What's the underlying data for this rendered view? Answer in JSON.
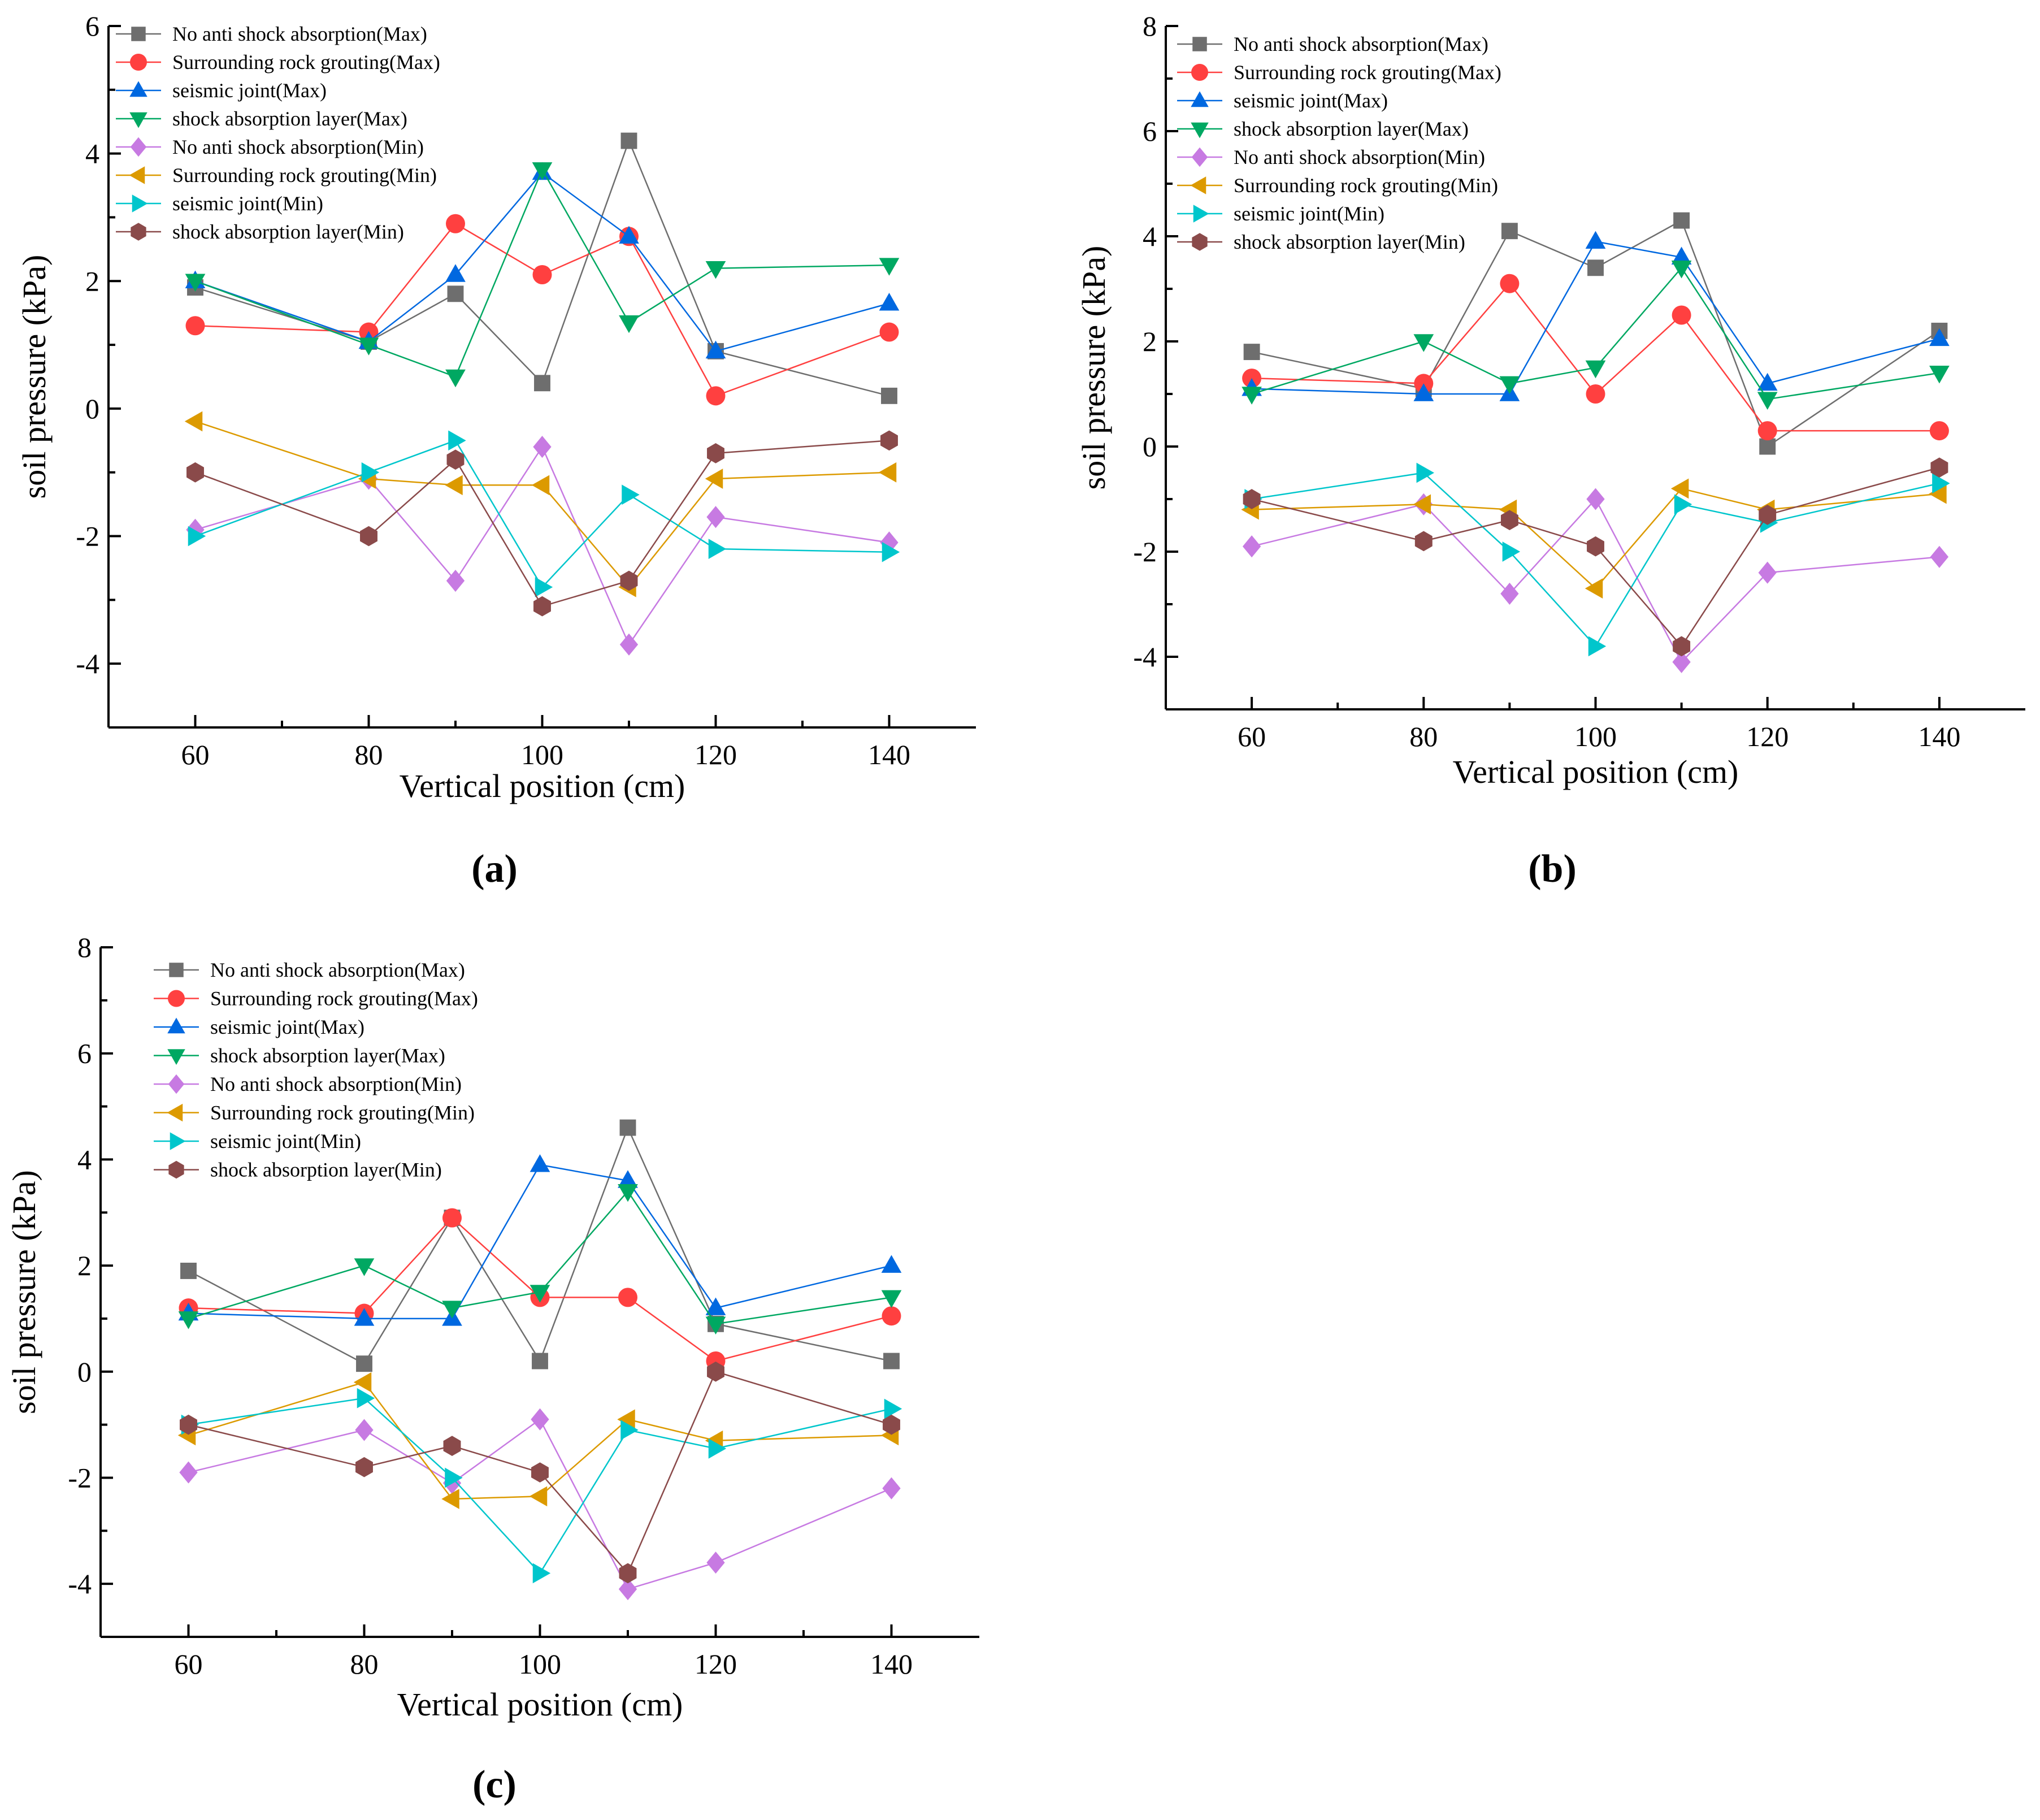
{
  "colors": {
    "No anti shock absorption(Max)": "#6e6e6e",
    "Surrounding rock grouting(Max)": "#ff4040",
    "seismic joint(Max)": "#0068e0",
    "shock absorption layer(Max)": "#00a862",
    "No anti shock absorption(Min)": "#c77ae2",
    "Surrounding rock grouting(Min)": "#dc9a00",
    "seismic joint(Min)": "#00c6cc",
    "shock absorption layer(Min)": "#8a4a4a"
  },
  "chart_data": [
    {
      "panel_label": "(a)",
      "panel_letter": "a",
      "type": "line",
      "xlabel": "Vertical position (cm)",
      "ylabel": "soil pressure (kPa)",
      "xlim": [
        50,
        150
      ],
      "ylim": [
        -5,
        6
      ],
      "xticks": [
        60,
        80,
        100,
        120,
        140
      ],
      "yticks": [
        -4,
        -2,
        0,
        2,
        4,
        6
      ],
      "legend": "top-left",
      "x": [
        60,
        80,
        90,
        100,
        110,
        120,
        140
      ],
      "series": [
        {
          "name": "No anti shock absorption(Max)",
          "marker": "square",
          "values": [
            1.9,
            1.05,
            1.8,
            0.4,
            4.2,
            0.9,
            0.2
          ]
        },
        {
          "name": "Surrounding rock grouting(Max)",
          "marker": "circle",
          "values": [
            1.3,
            1.2,
            2.9,
            2.1,
            2.7,
            0.2,
            1.2
          ]
        },
        {
          "name": "seismic joint(Max)",
          "marker": "triangle-up",
          "values": [
            2.0,
            1.05,
            2.1,
            3.7,
            2.7,
            0.9,
            1.65
          ]
        },
        {
          "name": "shock absorption layer(Max)",
          "marker": "triangle-down",
          "values": [
            2.0,
            1.0,
            0.5,
            3.75,
            1.35,
            2.2,
            2.25
          ]
        },
        {
          "name": "No anti shock absorption(Min)",
          "marker": "diamond",
          "values": [
            -1.9,
            -1.1,
            -2.7,
            -0.6,
            -3.7,
            -1.7,
            -2.1
          ]
        },
        {
          "name": "Surrounding rock grouting(Min)",
          "marker": "triangle-left",
          "values": [
            -0.2,
            -1.1,
            -1.2,
            -1.2,
            -2.8,
            -1.1,
            -1.0
          ]
        },
        {
          "name": "seismic joint(Min)",
          "marker": "triangle-right",
          "values": [
            -2.0,
            -1.0,
            -0.5,
            -2.8,
            -1.35,
            -2.2,
            -2.25
          ]
        },
        {
          "name": "shock absorption layer(Min)",
          "marker": "hexagon",
          "values": [
            -1.0,
            -2.0,
            -0.8,
            -3.1,
            -2.7,
            -0.7,
            -0.5
          ]
        }
      ]
    },
    {
      "panel_label": "(b)",
      "panel_letter": "b",
      "type": "line",
      "xlabel": "Vertical position (cm)",
      "ylabel": "soil pressure (kPa)",
      "xlim": [
        50,
        150
      ],
      "ylim": [
        -5,
        8
      ],
      "xticks": [
        60,
        80,
        100,
        120,
        140
      ],
      "yticks": [
        -4,
        -2,
        0,
        2,
        4,
        6,
        8
      ],
      "legend": "top-left",
      "x": [
        60,
        80,
        90,
        100,
        110,
        120,
        140
      ],
      "series": [
        {
          "name": "No anti shock absorption(Max)",
          "marker": "square",
          "values": [
            1.8,
            1.1,
            4.1,
            3.4,
            4.3,
            0.0,
            2.2
          ]
        },
        {
          "name": "Surrounding rock grouting(Max)",
          "marker": "circle",
          "values": [
            1.3,
            1.2,
            3.1,
            1.0,
            2.5,
            0.3,
            0.3
          ]
        },
        {
          "name": "seismic joint(Max)",
          "marker": "triangle-up",
          "values": [
            1.1,
            1.0,
            1.0,
            3.9,
            3.6,
            1.2,
            2.05
          ]
        },
        {
          "name": "shock absorption layer(Max)",
          "marker": "triangle-down",
          "values": [
            1.0,
            2.0,
            1.2,
            1.5,
            3.4,
            0.9,
            1.4
          ]
        },
        {
          "name": "No anti shock absorption(Min)",
          "marker": "diamond",
          "values": [
            -1.9,
            -1.1,
            -2.8,
            -1.0,
            -4.1,
            -2.4,
            -2.1
          ]
        },
        {
          "name": "Surrounding rock grouting(Min)",
          "marker": "triangle-left",
          "values": [
            -1.2,
            -1.1,
            -1.2,
            -2.7,
            -0.8,
            -1.2,
            -0.9
          ]
        },
        {
          "name": "seismic joint(Min)",
          "marker": "triangle-right",
          "values": [
            -1.0,
            -0.5,
            -2.0,
            -3.8,
            -1.1,
            -1.45,
            -0.7
          ]
        },
        {
          "name": "shock absorption layer(Min)",
          "marker": "hexagon",
          "values": [
            -1.0,
            -1.8,
            -1.4,
            -1.9,
            -3.8,
            -1.3,
            -0.4
          ]
        }
      ]
    },
    {
      "panel_label": "(c)",
      "panel_letter": "c",
      "type": "line",
      "xlabel": "Vertical position (cm)",
      "ylabel": "soil pressure (kPa)",
      "xlim": [
        50,
        150
      ],
      "ylim": [
        -5,
        8
      ],
      "xticks": [
        60,
        80,
        100,
        120,
        140
      ],
      "yticks": [
        -4,
        -2,
        0,
        2,
        4,
        6,
        8
      ],
      "legend": "top-left",
      "x": [
        60,
        80,
        90,
        100,
        110,
        120,
        140
      ],
      "series": [
        {
          "name": "No anti shock absorption(Max)",
          "marker": "square",
          "values": [
            1.9,
            0.15,
            2.9,
            0.2,
            4.6,
            0.9,
            0.2
          ]
        },
        {
          "name": "Surrounding rock grouting(Max)",
          "marker": "circle",
          "values": [
            1.2,
            1.1,
            2.9,
            1.4,
            1.4,
            0.2,
            1.05
          ]
        },
        {
          "name": "seismic joint(Max)",
          "marker": "triangle-up",
          "values": [
            1.1,
            1.0,
            1.0,
            3.9,
            3.6,
            1.2,
            2.0
          ]
        },
        {
          "name": "shock absorption layer(Max)",
          "marker": "triangle-down",
          "values": [
            1.0,
            2.0,
            1.2,
            1.5,
            3.4,
            0.9,
            1.4
          ]
        },
        {
          "name": "No anti shock absorption(Min)",
          "marker": "diamond",
          "values": [
            -1.9,
            -1.1,
            -2.1,
            -0.9,
            -4.1,
            -3.6,
            -2.2
          ]
        },
        {
          "name": "Surrounding rock grouting(Min)",
          "marker": "triangle-left",
          "values": [
            -1.2,
            -0.2,
            -2.4,
            -2.35,
            -0.9,
            -1.3,
            -1.2
          ]
        },
        {
          "name": "seismic joint(Min)",
          "marker": "triangle-right",
          "values": [
            -1.0,
            -0.5,
            -2.0,
            -3.8,
            -1.1,
            -1.45,
            -0.7
          ]
        },
        {
          "name": "shock absorption layer(Min)",
          "marker": "hexagon",
          "values": [
            -1.0,
            -1.8,
            -1.4,
            -1.9,
            -3.8,
            0.0,
            -1.0
          ]
        }
      ]
    }
  ]
}
